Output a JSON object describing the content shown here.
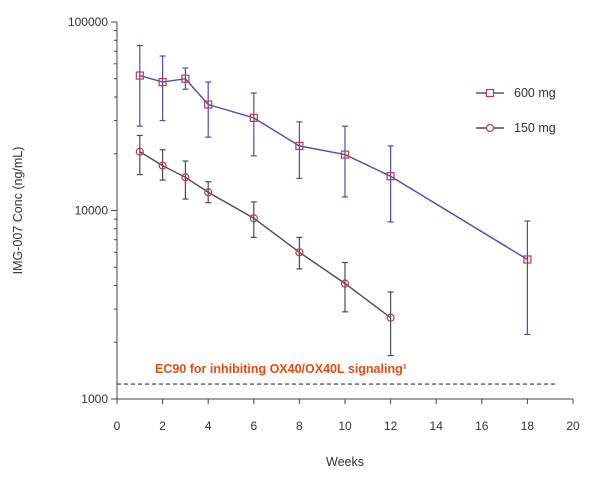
{
  "chart_data": {
    "type": "line",
    "title": "",
    "xlabel": "Weeks",
    "ylabel": "IMG-007 Conc (ng/mL)",
    "xlim": [
      0,
      20
    ],
    "ylim": [
      1000,
      100000
    ],
    "yscale": "log",
    "x_ticks": [
      0,
      2,
      4,
      6,
      8,
      10,
      12,
      14,
      16,
      18,
      20
    ],
    "y_ticks": [
      1000,
      10000,
      100000
    ],
    "grid": false,
    "legend_position": "top-right",
    "series": [
      {
        "name": "600 mg",
        "color": "#5548b0",
        "marker": "square",
        "marker_color": "#c0394b",
        "x": [
          1,
          2,
          3,
          4,
          6,
          8,
          10,
          12,
          18
        ],
        "y": [
          52000,
          48000,
          50000,
          36500,
          31000,
          22000,
          19800,
          15200,
          5500
        ],
        "err_lower": [
          28000,
          30000,
          44000,
          24500,
          19500,
          14800,
          11800,
          8700,
          2200
        ],
        "err_upper": [
          75000,
          66000,
          57000,
          48000,
          42000,
          29500,
          28000,
          22000,
          8800
        ]
      },
      {
        "name": "150 mg",
        "color": "#4d4d4d",
        "marker": "circle",
        "marker_color": "#c0394b",
        "x": [
          1,
          2,
          3,
          4,
          6,
          8,
          10,
          12
        ],
        "y": [
          20500,
          17300,
          15000,
          12500,
          9100,
          6000,
          4100,
          2700
        ],
        "err_lower": [
          15500,
          14500,
          11500,
          11000,
          7200,
          4900,
          2900,
          1700
        ],
        "err_upper": [
          25000,
          21000,
          18300,
          14200,
          11100,
          7200,
          5300,
          3700
        ]
      }
    ],
    "reference_line": {
      "y": 1200,
      "label": "EC90 for inhibiting OX40/OX40L signaling¹",
      "label_color": "#e04e14",
      "line_color": "#333333",
      "style": "dashed"
    }
  }
}
